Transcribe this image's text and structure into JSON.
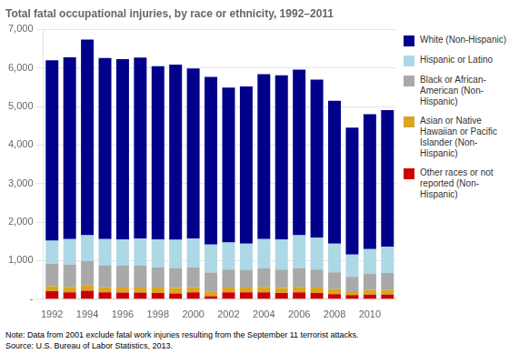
{
  "chart_data": {
    "type": "bar",
    "stacked": true,
    "title": "Total fatal occupational injuries, by race or ethnicity, 1992–2011",
    "categories": [
      "1992",
      null,
      "1994",
      null,
      "1996",
      null,
      "1998",
      null,
      "2000",
      null,
      "2002",
      null,
      "2004",
      null,
      "2006",
      null,
      "2008",
      null,
      "2010",
      null
    ],
    "series": [
      {
        "name": "Other races or not\nreported (Non-\nHispanic)",
        "color": "#CC0000",
        "values": [
          210,
          180,
          220,
          180,
          170,
          170,
          160,
          150,
          180,
          80,
          180,
          180,
          180,
          160,
          180,
          160,
          130,
          110,
          120,
          120
        ]
      },
      {
        "name": "Asian or Native\nHawaiian or Pacific\nIslander (Non-\nHispanic)",
        "color": "#DAA520",
        "values": [
          130,
          140,
          150,
          130,
          130,
          130,
          140,
          140,
          130,
          120,
          120,
          120,
          140,
          130,
          140,
          140,
          130,
          100,
          130,
          130
        ]
      },
      {
        "name": "Black or African-\nAmerican (Non-\nHispanic)",
        "color": "#A9A9A9",
        "values": [
          580,
          580,
          620,
          570,
          570,
          570,
          520,
          520,
          510,
          490,
          470,
          460,
          480,
          480,
          480,
          470,
          440,
          370,
          410,
          430
        ]
      },
      {
        "name": "Hispanic or Latino",
        "color": "#ADD8E6",
        "values": [
          600,
          660,
          670,
          680,
          680,
          700,
          730,
          730,
          750,
          730,
          700,
          680,
          760,
          780,
          860,
          830,
          740,
          580,
          640,
          680
        ]
      },
      {
        "name": "White (Non-Hispanic)",
        "color": "#00008B",
        "values": [
          4680,
          4720,
          5080,
          4700,
          4680,
          4700,
          4500,
          4550,
          4420,
          4350,
          4020,
          4080,
          4280,
          4260,
          4300,
          4100,
          3710,
          3290,
          3500,
          3550
        ]
      }
    ],
    "ylim": [
      0,
      7000
    ],
    "yticks": [
      {
        "value": 0,
        "label": "-"
      },
      {
        "value": 1000,
        "label": "1,000"
      },
      {
        "value": 2000,
        "label": "2,000"
      },
      {
        "value": 3000,
        "label": "3,000"
      },
      {
        "value": 4000,
        "label": "4,000"
      },
      {
        "value": 5000,
        "label": "5,000"
      },
      {
        "value": 6000,
        "label": "6,000"
      },
      {
        "value": 7000,
        "label": "7,000"
      }
    ],
    "grid": true,
    "legend": "right",
    "annotations": [
      "Note: Data from 2001 exclude fatal work injuries resulting from the September 11 terrorist attacks.",
      "Source: U.S. Bureau of Labor Statistics, 2013."
    ]
  }
}
